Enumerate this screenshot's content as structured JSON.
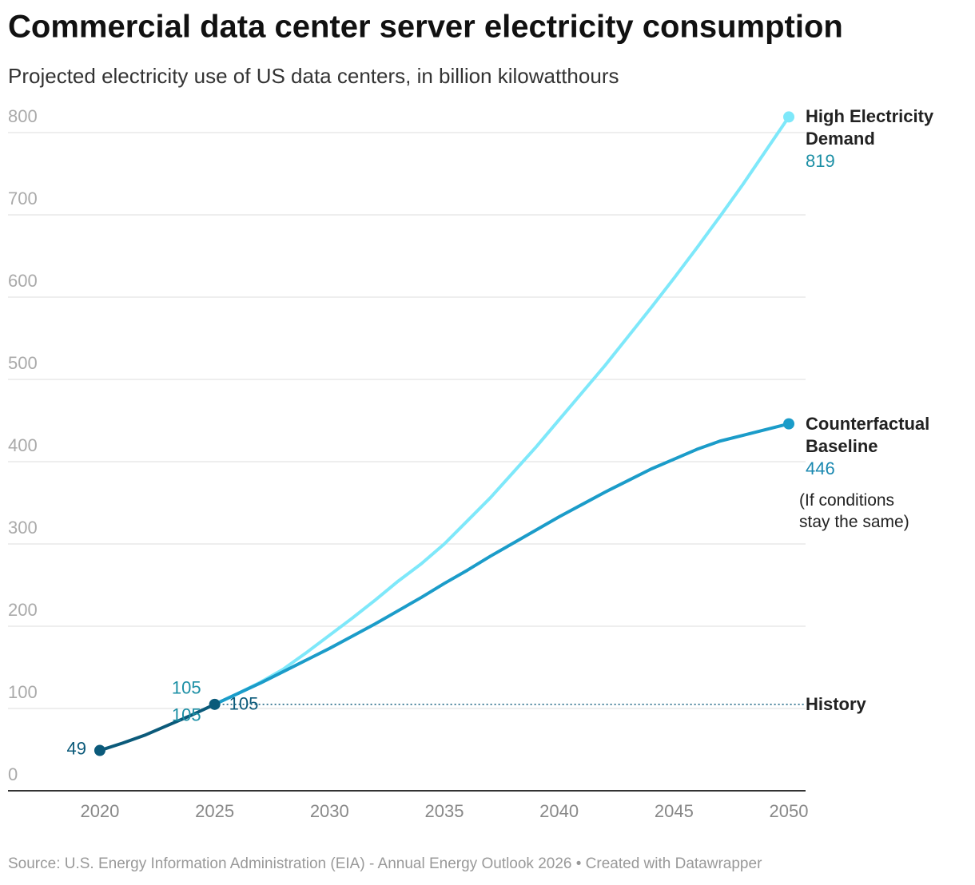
{
  "chart_data": {
    "type": "line",
    "title": "Commercial data center server electricity consumption",
    "subtitle": "Projected electricity use of US data centers, in billion kilowatthours",
    "source": "Source: U.S. Energy Information Administration (EIA) - Annual Energy Outlook 2026 • Created with Datawrapper",
    "annotation": "(If conditions stay the same)",
    "xlim": [
      2016,
      2050.73
    ],
    "ylim": [
      0,
      800
    ],
    "xticks": [
      2020,
      2025,
      2030,
      2035,
      2040,
      2045,
      2050
    ],
    "yticks": [
      0,
      100,
      200,
      300,
      400,
      500,
      600,
      700,
      800
    ],
    "grid": true,
    "series": [
      {
        "name": "History",
        "color": "#0b5a7a",
        "x": [
          2020,
          2021,
          2022,
          2023,
          2024,
          2025
        ],
        "values": [
          49,
          58,
          68,
          80,
          92,
          105
        ]
      },
      {
        "name": "Counterfactual Baseline",
        "color": "#1b9cc9",
        "x": [
          2025,
          2026,
          2027,
          2028,
          2029,
          2030,
          2031,
          2032,
          2033,
          2034,
          2035,
          2036,
          2037,
          2038,
          2039,
          2040,
          2041,
          2042,
          2043,
          2044,
          2045,
          2046,
          2047,
          2048,
          2049,
          2050
        ],
        "values": [
          105,
          118,
          131,
          145,
          159,
          173,
          188,
          203,
          219,
          235,
          252,
          268,
          285,
          301,
          317,
          333,
          348,
          363,
          377,
          391,
          403,
          415,
          425,
          432,
          439,
          446
        ]
      },
      {
        "name": "High Electricity Demand",
        "color": "#7ee8fa",
        "x": [
          2025,
          2026,
          2027,
          2028,
          2029,
          2030,
          2031,
          2032,
          2033,
          2034,
          2035,
          2036,
          2037,
          2038,
          2039,
          2040,
          2041,
          2042,
          2043,
          2044,
          2045,
          2046,
          2047,
          2048,
          2049,
          2050
        ],
        "values": [
          105,
          118,
          132,
          148,
          168,
          189,
          210,
          232,
          255,
          276,
          300,
          328,
          356,
          387,
          418,
          451,
          484,
          517,
          552,
          587,
          623,
          660,
          698,
          737,
          778,
          819
        ]
      }
    ]
  }
}
